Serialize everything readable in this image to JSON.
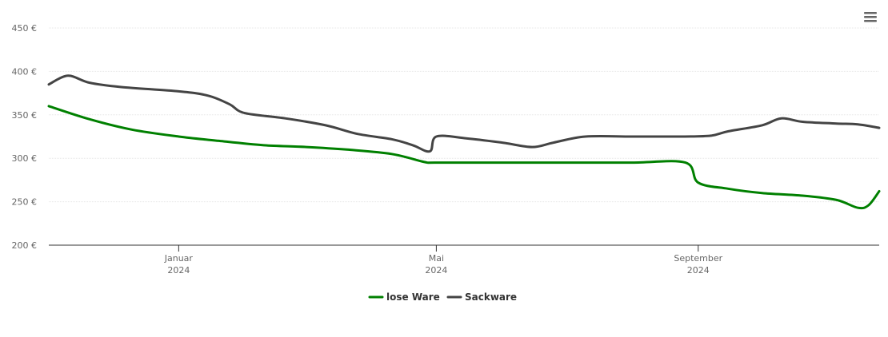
{
  "chart_data": {
    "type": "line",
    "title": "",
    "xlabel": "",
    "ylabel": "",
    "ylim": [
      200,
      450
    ],
    "y_ticks": [
      "450 €",
      "400 €",
      "350 €",
      "300 €",
      "250 €",
      "200 €"
    ],
    "y_tick_values": [
      450,
      400,
      350,
      300,
      250,
      200
    ],
    "x_range": [
      "2023-11-01",
      "2024-11-25"
    ],
    "x_ticks": [
      {
        "date": "2024-01-01",
        "label": "Januar",
        "sublabel": "2024"
      },
      {
        "date": "2024-05-01",
        "label": "Mai",
        "sublabel": "2024"
      },
      {
        "date": "2024-09-01",
        "label": "September",
        "sublabel": "2024"
      }
    ],
    "grid": true,
    "legend_position": "bottom-center",
    "series": [
      {
        "name": "lose Ware",
        "color": "#008000",
        "points": [
          [
            "2023-11-01",
            360
          ],
          [
            "2023-11-20",
            345
          ],
          [
            "2023-12-10",
            333
          ],
          [
            "2024-01-01",
            325
          ],
          [
            "2024-01-20",
            320
          ],
          [
            "2024-02-10",
            315
          ],
          [
            "2024-03-01",
            313
          ],
          [
            "2024-03-20",
            310
          ],
          [
            "2024-04-10",
            305
          ],
          [
            "2024-04-25",
            296
          ],
          [
            "2024-05-01",
            295
          ],
          [
            "2024-06-01",
            295
          ],
          [
            "2024-07-01",
            295
          ],
          [
            "2024-08-01",
            295
          ],
          [
            "2024-08-26",
            295
          ],
          [
            "2024-09-01",
            272
          ],
          [
            "2024-09-15",
            265
          ],
          [
            "2024-10-01",
            260
          ],
          [
            "2024-10-20",
            257
          ],
          [
            "2024-11-05",
            252
          ],
          [
            "2024-11-15",
            243
          ],
          [
            "2024-11-20",
            246
          ],
          [
            "2024-11-25",
            262
          ]
        ]
      },
      {
        "name": "Sackware",
        "color": "#444444",
        "points": [
          [
            "2023-11-01",
            385
          ],
          [
            "2023-11-10",
            395
          ],
          [
            "2023-11-20",
            387
          ],
          [
            "2023-12-05",
            382
          ],
          [
            "2024-01-01",
            377
          ],
          [
            "2024-01-15",
            372
          ],
          [
            "2024-01-25",
            362
          ],
          [
            "2024-02-01",
            352
          ],
          [
            "2024-02-20",
            346
          ],
          [
            "2024-03-10",
            338
          ],
          [
            "2024-03-25",
            328
          ],
          [
            "2024-04-10",
            322
          ],
          [
            "2024-04-20",
            315
          ],
          [
            "2024-04-28",
            308
          ],
          [
            "2024-05-01",
            325
          ],
          [
            "2024-05-15",
            323
          ],
          [
            "2024-06-01",
            318
          ],
          [
            "2024-06-15",
            313
          ],
          [
            "2024-06-25",
            318
          ],
          [
            "2024-07-10",
            325
          ],
          [
            "2024-08-01",
            325
          ],
          [
            "2024-08-25",
            325
          ],
          [
            "2024-09-07",
            326
          ],
          [
            "2024-09-15",
            331
          ],
          [
            "2024-10-01",
            338
          ],
          [
            "2024-10-10",
            346
          ],
          [
            "2024-10-20",
            342
          ],
          [
            "2024-11-05",
            340
          ],
          [
            "2024-11-15",
            339
          ],
          [
            "2024-11-25",
            335
          ]
        ]
      }
    ]
  },
  "toolbar": {
    "menu_icon": "hamburger-menu-icon"
  }
}
